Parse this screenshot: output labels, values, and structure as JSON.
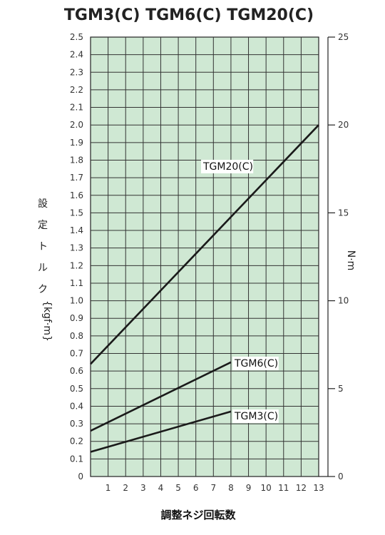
{
  "chart_data": {
    "type": "line",
    "title": "TGM3(C) TGM6(C) TGM20(C)",
    "xlabel": "調整ネジ回転数",
    "ylabel_left_chars": [
      "設",
      "定",
      "ト",
      "ル",
      "ク"
    ],
    "ylabel_left_unit": "{kgf·m}",
    "ylabel_right": "N·m",
    "xlim": [
      0,
      13
    ],
    "ylim_left": [
      0,
      2.5
    ],
    "ylim_right": [
      0,
      25
    ],
    "x_ticks": [
      "1",
      "2",
      "3",
      "4",
      "5",
      "6",
      "7",
      "8",
      "9",
      "10",
      "11",
      "12",
      "13"
    ],
    "x_origin_label": "0",
    "y_left_ticks": [
      "0",
      "0.1",
      "0.2",
      "0.3",
      "0.4",
      "0.5",
      "0.6",
      "0.7",
      "0.8",
      "0.9",
      "1.0",
      "1.1",
      "1.2",
      "1.3",
      "1.4",
      "1.5",
      "1.6",
      "1.7",
      "1.8",
      "1.9",
      "2.0",
      "2.1",
      "2.2",
      "2.3",
      "2.4",
      "2.5"
    ],
    "y_right_ticks": [
      "0",
      "5",
      "10",
      "15",
      "20",
      "25"
    ],
    "grid": true,
    "background_color": "#cfe8d3",
    "series": [
      {
        "name": "TGM20(C)",
        "x": [
          0,
          13
        ],
        "y": [
          0.64,
          2.0
        ]
      },
      {
        "name": "TGM6(C)",
        "x": [
          0,
          8
        ],
        "y": [
          0.26,
          0.65
        ]
      },
      {
        "name": "TGM3(C)",
        "x": [
          0,
          8
        ],
        "y": [
          0.14,
          0.37
        ]
      }
    ]
  }
}
